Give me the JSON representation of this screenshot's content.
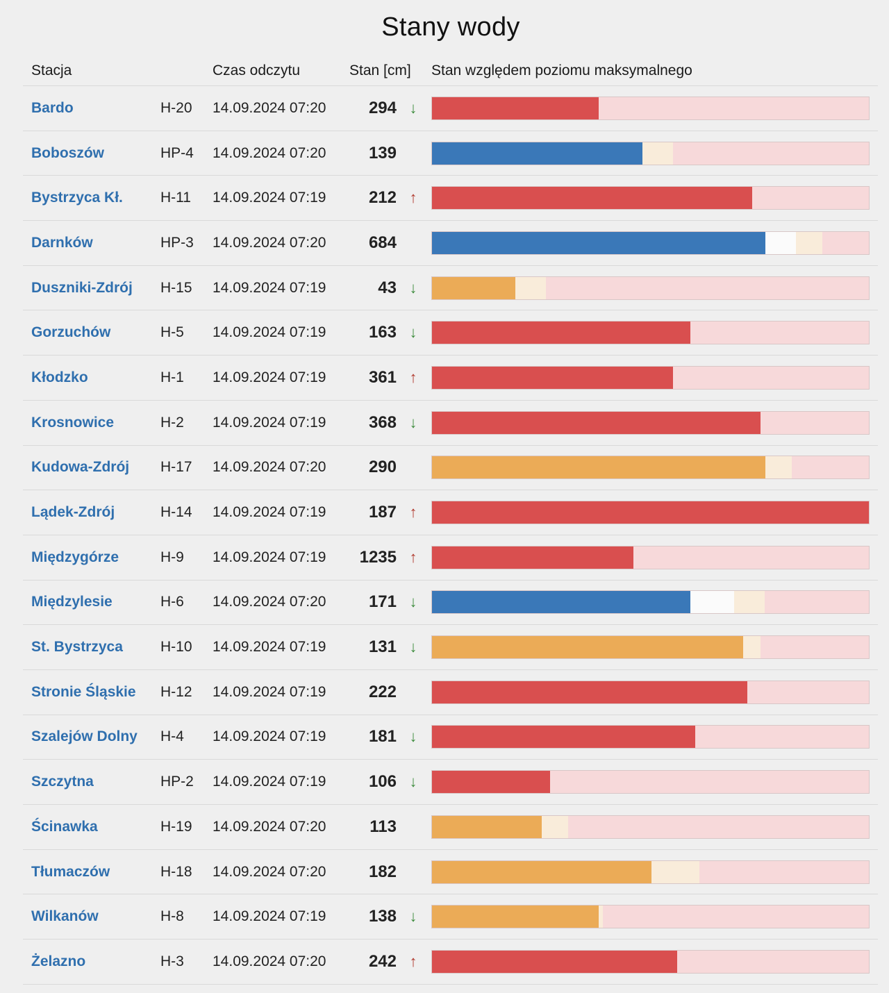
{
  "page": {
    "title": "Stany wody"
  },
  "columns": {
    "station": "Stacja",
    "time": "Czas odczytu",
    "level": "Stan [cm]",
    "bar": "Stan względem poziomu maksymalnego"
  },
  "colors": {
    "red": "#d94f4f",
    "blue": "#3a78b8",
    "orange": "#ebab57",
    "cream": "#f9ecda",
    "white": "#fbfbfb",
    "pink_background": "#f7d9da",
    "link_blue": "#2f6fae",
    "trend_down": "#3a8a3a",
    "trend_up": "#b03a2e"
  },
  "rows": [
    {
      "name": "Bardo",
      "code": "H-20",
      "time": "14.09.2024 07:20",
      "level": "294",
      "trend": "down",
      "bar": {
        "color": "red",
        "fill": 0.38,
        "white": 0,
        "cream": 0
      }
    },
    {
      "name": "Boboszów",
      "code": "HP-4",
      "time": "14.09.2024 07:20",
      "level": "139",
      "trend": "none",
      "bar": {
        "color": "blue",
        "fill": 0.48,
        "white": 0,
        "cream": 0.07
      }
    },
    {
      "name": "Bystrzyca Kł.",
      "code": "H-11",
      "time": "14.09.2024 07:19",
      "level": "212",
      "trend": "up",
      "bar": {
        "color": "red",
        "fill": 0.73,
        "white": 0,
        "cream": 0
      }
    },
    {
      "name": "Darnków",
      "code": "HP-3",
      "time": "14.09.2024 07:20",
      "level": "684",
      "trend": "none",
      "bar": {
        "color": "blue",
        "fill": 0.76,
        "white": 0.07,
        "cream": 0.06
      }
    },
    {
      "name": "Duszniki-Zdrój",
      "code": "H-15",
      "time": "14.09.2024 07:19",
      "level": "43",
      "trend": "down",
      "bar": {
        "color": "orange",
        "fill": 0.19,
        "white": 0,
        "cream": 0.07
      }
    },
    {
      "name": "Gorzuchów",
      "code": "H-5",
      "time": "14.09.2024 07:19",
      "level": "163",
      "trend": "down",
      "bar": {
        "color": "red",
        "fill": 0.59,
        "white": 0,
        "cream": 0
      }
    },
    {
      "name": "Kłodzko",
      "code": "H-1",
      "time": "14.09.2024 07:19",
      "level": "361",
      "trend": "up",
      "bar": {
        "color": "red",
        "fill": 0.55,
        "white": 0,
        "cream": 0
      }
    },
    {
      "name": "Krosnowice",
      "code": "H-2",
      "time": "14.09.2024 07:19",
      "level": "368",
      "trend": "down",
      "bar": {
        "color": "red",
        "fill": 0.75,
        "white": 0,
        "cream": 0
      }
    },
    {
      "name": "Kudowa-Zdrój",
      "code": "H-17",
      "time": "14.09.2024 07:20",
      "level": "290",
      "trend": "none",
      "bar": {
        "color": "orange",
        "fill": 0.76,
        "white": 0,
        "cream": 0.06
      }
    },
    {
      "name": "Lądek-Zdrój",
      "code": "H-14",
      "time": "14.09.2024 07:19",
      "level": "187",
      "trend": "up",
      "bar": {
        "color": "red",
        "fill": 1.0,
        "white": 0,
        "cream": 0
      }
    },
    {
      "name": "Międzygórze",
      "code": "H-9",
      "time": "14.09.2024 07:19",
      "level": "1235",
      "trend": "up",
      "bar": {
        "color": "red",
        "fill": 0.46,
        "white": 0,
        "cream": 0
      }
    },
    {
      "name": "Międzylesie",
      "code": "H-6",
      "time": "14.09.2024 07:20",
      "level": "171",
      "trend": "down",
      "bar": {
        "color": "blue",
        "fill": 0.59,
        "white": 0.1,
        "cream": 0.07
      }
    },
    {
      "name": "St. Bystrzyca",
      "code": "H-10",
      "time": "14.09.2024 07:19",
      "level": "131",
      "trend": "down",
      "bar": {
        "color": "orange",
        "fill": 0.71,
        "white": 0,
        "cream": 0.04
      }
    },
    {
      "name": "Stronie Śląskie",
      "code": "H-12",
      "time": "14.09.2024 07:19",
      "level": "222",
      "trend": "none",
      "bar": {
        "color": "red",
        "fill": 0.72,
        "white": 0,
        "cream": 0
      }
    },
    {
      "name": "Szalejów Dolny",
      "code": "H-4",
      "time": "14.09.2024 07:19",
      "level": "181",
      "trend": "down",
      "bar": {
        "color": "red",
        "fill": 0.6,
        "white": 0,
        "cream": 0
      }
    },
    {
      "name": "Szczytna",
      "code": "HP-2",
      "time": "14.09.2024 07:19",
      "level": "106",
      "trend": "down",
      "bar": {
        "color": "red",
        "fill": 0.27,
        "white": 0,
        "cream": 0
      }
    },
    {
      "name": "Ścinawka",
      "code": "H-19",
      "time": "14.09.2024 07:20",
      "level": "113",
      "trend": "none",
      "bar": {
        "color": "orange",
        "fill": 0.25,
        "white": 0,
        "cream": 0.06
      }
    },
    {
      "name": "Tłumaczów",
      "code": "H-18",
      "time": "14.09.2024 07:20",
      "level": "182",
      "trend": "none",
      "bar": {
        "color": "orange",
        "fill": 0.5,
        "white": 0,
        "cream": 0.11
      }
    },
    {
      "name": "Wilkanów",
      "code": "H-8",
      "time": "14.09.2024 07:19",
      "level": "138",
      "trend": "down",
      "bar": {
        "color": "orange",
        "fill": 0.38,
        "white": 0,
        "cream": 0.01
      }
    },
    {
      "name": "Żelazno",
      "code": "H-3",
      "time": "14.09.2024 07:20",
      "level": "242",
      "trend": "up",
      "bar": {
        "color": "red",
        "fill": 0.56,
        "white": 0,
        "cream": 0
      }
    }
  ]
}
